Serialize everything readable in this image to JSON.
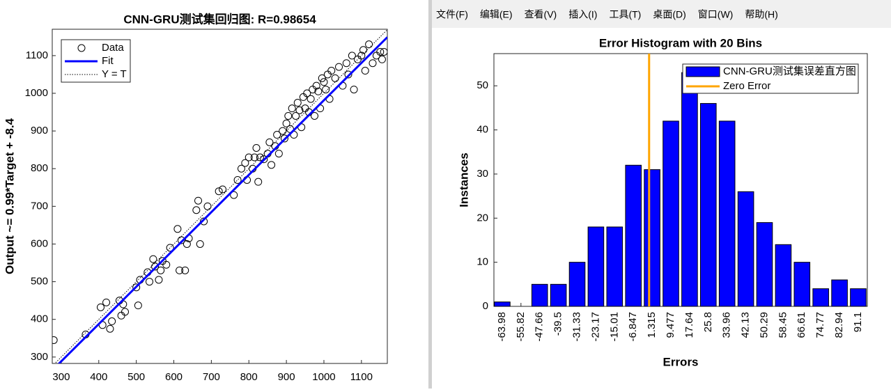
{
  "menu": [
    "文件(F)",
    "编辑(E)",
    "查看(V)",
    "插入(I)",
    "工具(T)",
    "桌面(D)",
    "窗口(W)",
    "帮助(H)"
  ],
  "chart_data": [
    {
      "type": "scatter",
      "title": "CNN-GRU测试集回归图: R=0.98654",
      "y_label": "Output ~= 0.99*Target + -8.4",
      "xlim": [
        276,
        1169
      ],
      "ylim": [
        283,
        1170
      ],
      "xticks": [
        300,
        400,
        500,
        600,
        700,
        800,
        900,
        1000,
        1100
      ],
      "yticks": [
        300,
        400,
        500,
        600,
        700,
        800,
        900,
        1000,
        1100
      ],
      "series": [
        {
          "name": "Data",
          "color": "#000000",
          "style": "marker",
          "x": [
            280,
            365,
            405,
            410,
            420,
            430,
            435,
            455,
            460,
            465,
            470,
            500,
            505,
            510,
            530,
            535,
            545,
            550,
            560,
            565,
            570,
            580,
            590,
            610,
            615,
            620,
            630,
            635,
            640,
            660,
            665,
            670,
            680,
            690,
            720,
            730,
            760,
            770,
            780,
            790,
            795,
            800,
            810,
            815,
            820,
            825,
            830,
            840,
            850,
            855,
            860,
            870,
            875,
            880,
            890,
            895,
            900,
            905,
            910,
            915,
            920,
            925,
            930,
            935,
            940,
            945,
            950,
            955,
            960,
            965,
            970,
            975,
            980,
            985,
            990,
            995,
            1000,
            1005,
            1010,
            1015,
            1020,
            1030,
            1040,
            1050,
            1060,
            1065,
            1075,
            1080,
            1090,
            1100,
            1105,
            1110,
            1120,
            1130,
            1140,
            1150,
            1160,
            1155
          ],
          "values": [
            345,
            360,
            432,
            385,
            445,
            375,
            395,
            450,
            410,
            440,
            420,
            485,
            437,
            505,
            525,
            500,
            560,
            540,
            505,
            530,
            555,
            545,
            590,
            640,
            530,
            610,
            530,
            600,
            615,
            690,
            715,
            600,
            660,
            700,
            740,
            745,
            730,
            770,
            800,
            815,
            770,
            830,
            800,
            830,
            855,
            765,
            830,
            825,
            840,
            870,
            810,
            860,
            890,
            840,
            900,
            880,
            920,
            940,
            905,
            960,
            890,
            940,
            975,
            955,
            910,
            990,
            960,
            1000,
            950,
            985,
            1010,
            940,
            1020,
            1005,
            960,
            1040,
            1030,
            1010,
            1050,
            985,
            1060,
            1040,
            1070,
            1020,
            1080,
            1050,
            1100,
            1010,
            1090,
            1100,
            1115,
            1060,
            1130,
            1080,
            1100,
            1110,
            1110,
            1090
          ]
        },
        {
          "name": "Fit",
          "color": "#0000ff",
          "style": "line",
          "x": [
            276,
            1169
          ],
          "values": [
            264.84,
            1148.91
          ]
        },
        {
          "name": "Y = T",
          "color": "#000000",
          "style": "dotted",
          "x": [
            276,
            1169
          ],
          "values": [
            276,
            1169
          ]
        }
      ]
    },
    {
      "type": "bar",
      "title": "Error Histogram with 20 Bins",
      "x_label": "Errors",
      "y_label": "Instances",
      "categories": [
        -63.98,
        -55.82,
        -47.66,
        -39.5,
        -31.33,
        -23.17,
        -15.01,
        -6.847,
        1.315,
        9.477,
        17.64,
        25.8,
        33.96,
        42.13,
        50.29,
        58.45,
        66.61,
        74.77,
        82.94,
        91.1
      ],
      "series": [
        {
          "name": "CNN-GRU测试集误差直方图",
          "color": "#0000ff",
          "values": [
            1,
            0,
            5,
            5,
            10,
            18,
            18,
            32,
            31,
            42,
            53,
            46,
            42,
            26,
            19,
            14,
            10,
            4,
            6,
            4
          ]
        }
      ],
      "vlines": [
        {
          "name": "Zero Error",
          "color": "#ffa500",
          "x": 0
        }
      ],
      "xlim": [
        -67.6,
        95.05
      ],
      "ylim": [
        0,
        57.3
      ],
      "yticks": [
        0,
        10,
        20,
        30,
        40,
        50
      ]
    }
  ]
}
